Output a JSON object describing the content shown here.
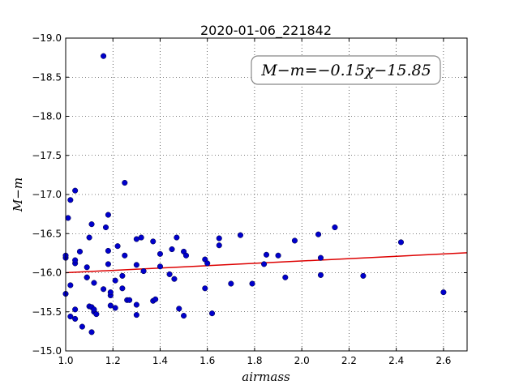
{
  "chart_data": {
    "type": "scatter",
    "title": "2020-01-06_221842",
    "xlabel": "airmass",
    "ylabel": "M−m",
    "xlim": [
      1.0,
      2.7
    ],
    "ylim": [
      -19.0,
      -15.0
    ],
    "y_inverted": true,
    "grid": true,
    "x_ticks": [
      "1.0",
      "1.2",
      "1.4",
      "1.6",
      "1.8",
      "2.0",
      "2.2",
      "2.4",
      "2.6"
    ],
    "y_ticks": [
      "−15.0",
      "−15.5",
      "−16.0",
      "−16.5",
      "−17.0",
      "−17.5",
      "−18.0",
      "−18.5",
      "−19.0"
    ],
    "annotation": "M−m=−0.15χ−15.85",
    "colors": {
      "points": "#0000cc",
      "fit": "#dd0000"
    },
    "fit": {
      "slope": -0.15,
      "intercept": -15.85
    },
    "series": [
      {
        "points": [
          [
            1.0,
            -15.73
          ],
          [
            1.0,
            -16.19
          ],
          [
            1.0,
            -16.22
          ],
          [
            1.01,
            -16.7
          ],
          [
            1.02,
            -16.93
          ],
          [
            1.02,
            -15.84
          ],
          [
            1.02,
            -15.44
          ],
          [
            1.04,
            -15.53
          ],
          [
            1.04,
            -15.41
          ],
          [
            1.04,
            -16.12
          ],
          [
            1.04,
            -16.16
          ],
          [
            1.04,
            -17.05
          ],
          [
            1.06,
            -16.27
          ],
          [
            1.07,
            -15.31
          ],
          [
            1.09,
            -15.94
          ],
          [
            1.09,
            -15.94
          ],
          [
            1.09,
            -16.07
          ],
          [
            1.1,
            -15.57
          ],
          [
            1.1,
            -16.45
          ],
          [
            1.11,
            -15.24
          ],
          [
            1.11,
            -15.56
          ],
          [
            1.11,
            -16.62
          ],
          [
            1.12,
            -15.5
          ],
          [
            1.12,
            -15.53
          ],
          [
            1.12,
            -15.87
          ],
          [
            1.13,
            -15.47
          ],
          [
            1.16,
            -15.79
          ],
          [
            1.16,
            -18.77
          ],
          [
            1.17,
            -16.58
          ],
          [
            1.18,
            -16.11
          ],
          [
            1.18,
            -16.28
          ],
          [
            1.18,
            -16.74
          ],
          [
            1.19,
            -15.58
          ],
          [
            1.19,
            -15.71
          ],
          [
            1.19,
            -15.75
          ],
          [
            1.21,
            -15.55
          ],
          [
            1.21,
            -15.9
          ],
          [
            1.22,
            -16.34
          ],
          [
            1.24,
            -15.8
          ],
          [
            1.24,
            -15.96
          ],
          [
            1.25,
            -16.22
          ],
          [
            1.25,
            -17.15
          ],
          [
            1.26,
            -15.65
          ],
          [
            1.27,
            -15.65
          ],
          [
            1.3,
            -15.46
          ],
          [
            1.3,
            -15.59
          ],
          [
            1.3,
            -16.1
          ],
          [
            1.3,
            -16.43
          ],
          [
            1.32,
            -16.45
          ],
          [
            1.33,
            -16.02
          ],
          [
            1.37,
            -16.4
          ],
          [
            1.37,
            -15.64
          ],
          [
            1.38,
            -15.66
          ],
          [
            1.4,
            -16.08
          ],
          [
            1.4,
            -16.24
          ],
          [
            1.44,
            -15.98
          ],
          [
            1.45,
            -16.3
          ],
          [
            1.46,
            -15.92
          ],
          [
            1.47,
            -16.45
          ],
          [
            1.48,
            -15.54
          ],
          [
            1.5,
            -15.45
          ],
          [
            1.5,
            -16.27
          ],
          [
            1.51,
            -16.22
          ],
          [
            1.59,
            -15.8
          ],
          [
            1.59,
            -16.17
          ],
          [
            1.6,
            -16.12
          ],
          [
            1.62,
            -15.48
          ],
          [
            1.65,
            -16.35
          ],
          [
            1.65,
            -16.44
          ],
          [
            1.7,
            -15.86
          ],
          [
            1.74,
            -16.48
          ],
          [
            1.79,
            -15.86
          ],
          [
            1.84,
            -16.11
          ],
          [
            1.85,
            -16.23
          ],
          [
            1.9,
            -16.22
          ],
          [
            1.93,
            -15.94
          ],
          [
            1.97,
            -16.41
          ],
          [
            2.07,
            -16.49
          ],
          [
            2.08,
            -16.19
          ],
          [
            2.08,
            -15.97
          ],
          [
            2.14,
            -16.58
          ],
          [
            2.26,
            -15.96
          ],
          [
            2.42,
            -16.39
          ],
          [
            2.6,
            -15.75
          ]
        ]
      }
    ]
  }
}
